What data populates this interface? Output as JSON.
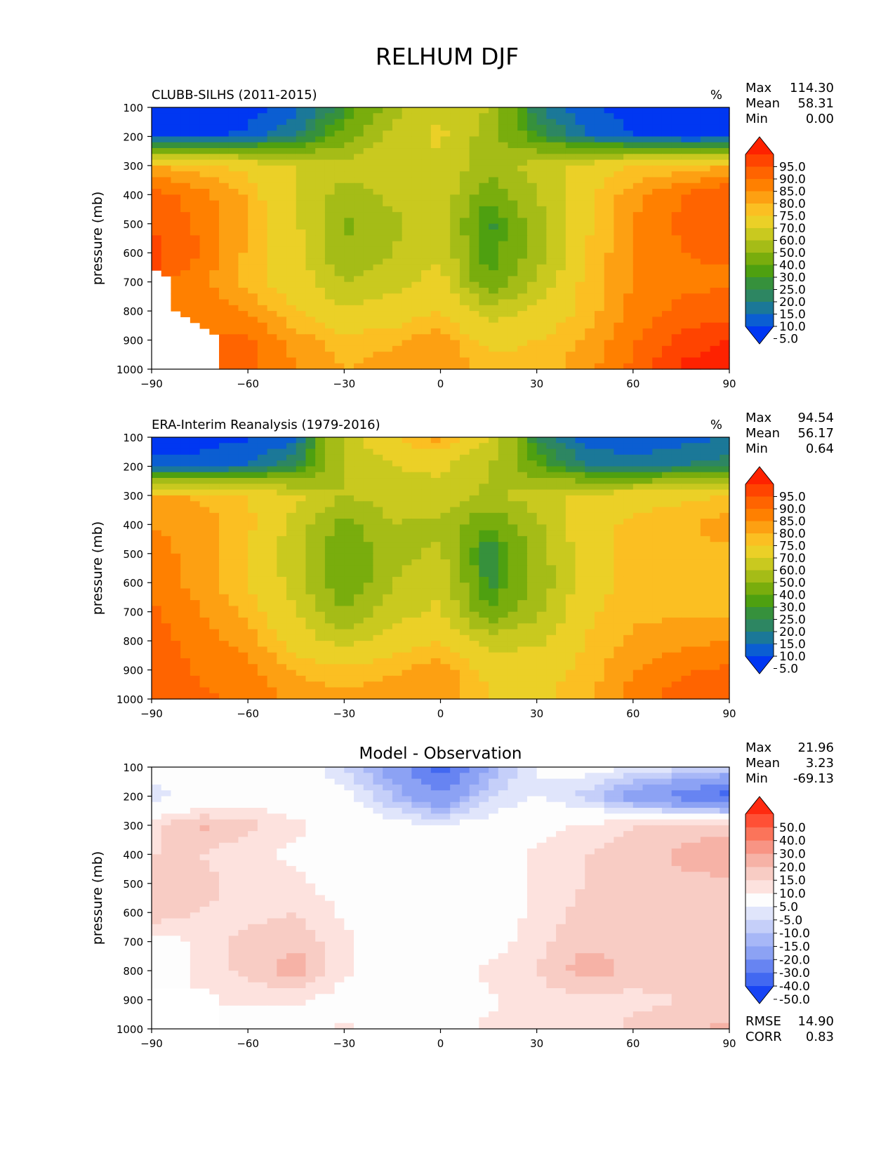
{
  "figure": {
    "title": "RELHUM DJF"
  },
  "panels": [
    {
      "id": "model",
      "title": "CLUBB-SILHS (2011-2015)",
      "units": "%",
      "stats": [
        {
          "label": "Max",
          "value": "114.30"
        },
        {
          "label": "Mean",
          "value": "58.31"
        },
        {
          "label": "Min",
          "value": "0.00"
        }
      ],
      "colorbar": {
        "labels": [
          "95.0",
          "90.0",
          "85.0",
          "80.0",
          "75.0",
          "70.0",
          "60.0",
          "50.0",
          "40.0",
          "30.0",
          "25.0",
          "20.0",
          "15.0",
          "10.0",
          "5.0"
        ],
        "colors": [
          "#fe2200",
          "#ff4400",
          "#ff6400",
          "#ff8000",
          "#fda012",
          "#fbbf22",
          "#ebd027",
          "#c9c91f",
          "#a5bc17",
          "#79ad0d",
          "#4ea010",
          "#36913c",
          "#2d8662",
          "#1b7898",
          "#0b5ed2",
          "#0037f2"
        ]
      },
      "bottom_stats": []
    },
    {
      "id": "obs",
      "title": "ERA-Interim Reanalysis (1979-2016)",
      "units": "%",
      "stats": [
        {
          "label": "Max",
          "value": "94.54"
        },
        {
          "label": "Mean",
          "value": "56.17"
        },
        {
          "label": "Min",
          "value": "0.64"
        }
      ],
      "colorbar": {
        "labels": [
          "95.0",
          "90.0",
          "85.0",
          "80.0",
          "75.0",
          "70.0",
          "60.0",
          "50.0",
          "40.0",
          "30.0",
          "25.0",
          "20.0",
          "15.0",
          "10.0",
          "5.0"
        ],
        "colors": [
          "#fe2200",
          "#ff4400",
          "#ff6400",
          "#ff8000",
          "#fda012",
          "#fbbf22",
          "#ebd027",
          "#c9c91f",
          "#a5bc17",
          "#79ad0d",
          "#4ea010",
          "#36913c",
          "#2d8662",
          "#1b7898",
          "#0b5ed2",
          "#0037f2"
        ]
      },
      "bottom_stats": []
    },
    {
      "id": "diff",
      "title": "Model - Observation",
      "units": "",
      "stats": [
        {
          "label": "Max",
          "value": "21.96"
        },
        {
          "label": "Mean",
          "value": "3.23"
        },
        {
          "label": "Min",
          "value": "-69.13"
        }
      ],
      "colorbar": {
        "labels": [
          "50.0",
          "40.0",
          "30.0",
          "20.0",
          "15.0",
          "10.0",
          "5.0",
          "-5.0",
          "-10.0",
          "-15.0",
          "-20.0",
          "-30.0",
          "-40.0",
          "-50.0"
        ],
        "colors": [
          "#ff2a10",
          "#ff5035",
          "#fb745a",
          "#f89484",
          "#f6b2a6",
          "#f8ccc4",
          "#fde2de",
          "#fdfdfd",
          "#e0e5fb",
          "#c5cff9",
          "#a7b7f7",
          "#8ca2f4",
          "#6784f2",
          "#4268f1",
          "#1844f4"
        ]
      },
      "bottom_stats": [
        {
          "label": "RMSE",
          "value": "14.90"
        },
        {
          "label": "CORR",
          "value": "0.83"
        }
      ]
    }
  ],
  "axes": {
    "ylabel": "pressure (mb)",
    "x_ticks": [
      "−90",
      "−60",
      "−30",
      "0",
      "30",
      "60",
      "90"
    ],
    "y_ticks": [
      "100",
      "200",
      "300",
      "400",
      "500",
      "600",
      "700",
      "800",
      "900",
      "1000"
    ]
  },
  "chart_data": [
    {
      "type": "heatmap",
      "title": "CLUBB-SILHS (2011-2015)",
      "units": "%",
      "ylabel": "pressure (mb)",
      "x": [
        -90,
        -75,
        -60,
        -45,
        -30,
        -15,
        0,
        15,
        30,
        45,
        60,
        75,
        90
      ],
      "y": [
        100,
        200,
        300,
        400,
        500,
        600,
        700,
        800,
        900,
        1000
      ],
      "xlim": [
        -90,
        90
      ],
      "ylim": [
        1000,
        100
      ],
      "levels": [
        5,
        10,
        15,
        20,
        25,
        30,
        40,
        50,
        60,
        70,
        75,
        80,
        85,
        90,
        95
      ],
      "stats": {
        "max": 114.3,
        "mean": 58.31,
        "min": 0.0
      },
      "z": [
        [
          2,
          2,
          3,
          8,
          22,
          45,
          60,
          50,
          15,
          6,
          3,
          2,
          2
        ],
        [
          3,
          4,
          6,
          15,
          35,
          55,
          62,
          45,
          25,
          10,
          5,
          3,
          3
        ],
        [
          75,
          72,
          68,
          60,
          55,
          55,
          58,
          45,
          55,
          65,
          70,
          72,
          75
        ],
        [
          88,
          82,
          74,
          60,
          45,
          52,
          58,
          32,
          50,
          68,
          78,
          85,
          90
        ],
        [
          90,
          84,
          76,
          62,
          38,
          48,
          55,
          22,
          45,
          68,
          80,
          86,
          88
        ],
        [
          92,
          85,
          74,
          65,
          40,
          50,
          58,
          25,
          45,
          70,
          80,
          85,
          86
        ],
        [
          null,
          82,
          72,
          66,
          50,
          56,
          65,
          30,
          52,
          72,
          80,
          84,
          84
        ],
        [
          null,
          84,
          80,
          70,
          62,
          65,
          70,
          55,
          62,
          72,
          82,
          86,
          88
        ],
        [
          null,
          null,
          86,
          78,
          72,
          74,
          78,
          68,
          70,
          76,
          84,
          92,
          95
        ],
        [
          null,
          null,
          86,
          80,
          75,
          78,
          80,
          72,
          72,
          78,
          86,
          96,
          98
        ]
      ]
    },
    {
      "type": "heatmap",
      "title": "ERA-Interim Reanalysis (1979-2016)",
      "units": "%",
      "ylabel": "pressure (mb)",
      "x": [
        -90,
        -75,
        -60,
        -45,
        -30,
        -15,
        0,
        15,
        30,
        45,
        60,
        75,
        90
      ],
      "y": [
        100,
        200,
        300,
        400,
        500,
        600,
        700,
        800,
        900,
        1000
      ],
      "xlim": [
        -90,
        90
      ],
      "ylim": [
        1000,
        100
      ],
      "levels": [
        5,
        10,
        15,
        20,
        25,
        30,
        40,
        50,
        60,
        70,
        75,
        80,
        85,
        90,
        95
      ],
      "stats": {
        "max": 94.54,
        "mean": 56.17,
        "min": 0.64
      },
      "z": [
        [
          3,
          3,
          4,
          8,
          55,
          70,
          78,
          60,
          20,
          8,
          5,
          8,
          10
        ],
        [
          6,
          7,
          10,
          20,
          50,
          60,
          62,
          50,
          30,
          15,
          12,
          15,
          18
        ],
        [
          76,
          74,
          70,
          62,
          50,
          55,
          56,
          48,
          55,
          64,
          66,
          68,
          70
        ],
        [
          80,
          78,
          72,
          56,
          36,
          50,
          48,
          30,
          48,
          66,
          72,
          74,
          78
        ],
        [
          82,
          78,
          70,
          54,
          30,
          46,
          52,
          18,
          44,
          66,
          72,
          72,
          74
        ],
        [
          84,
          78,
          70,
          56,
          30,
          50,
          58,
          22,
          42,
          66,
          72,
          72,
          72
        ],
        [
          86,
          80,
          74,
          60,
          40,
          56,
          62,
          30,
          48,
          68,
          74,
          74,
          74
        ],
        [
          88,
          82,
          78,
          66,
          56,
          66,
          70,
          56,
          58,
          70,
          76,
          78,
          80
        ],
        [
          90,
          84,
          82,
          74,
          72,
          74,
          78,
          68,
          66,
          72,
          80,
          84,
          86
        ],
        [
          90,
          86,
          84,
          78,
          76,
          78,
          80,
          70,
          68,
          74,
          82,
          88,
          90
        ]
      ]
    },
    {
      "type": "heatmap",
      "title": "Model - Observation",
      "units": "",
      "ylabel": "pressure (mb)",
      "x": [
        -90,
        -75,
        -60,
        -45,
        -30,
        -15,
        0,
        15,
        30,
        45,
        60,
        75,
        90
      ],
      "y": [
        100,
        200,
        300,
        400,
        500,
        600,
        700,
        800,
        900,
        1000
      ],
      "xlim": [
        -90,
        90
      ],
      "ylim": [
        1000,
        100
      ],
      "levels": [
        -50,
        -40,
        -30,
        -20,
        -15,
        -10,
        -5,
        5,
        10,
        15,
        20,
        30,
        40,
        50
      ],
      "stats": {
        "max": 21.96,
        "mean": 3.23,
        "min": -69.13,
        "rmse": 14.9,
        "corr": 0.83
      },
      "z": [
        [
          0,
          0,
          0,
          0,
          -10,
          -25,
          -45,
          -20,
          -5,
          -2,
          -5,
          -8,
          -10
        ],
        [
          -8,
          -2,
          0,
          0,
          -3,
          -15,
          -30,
          -10,
          -5,
          -12,
          -25,
          -35,
          -45
        ],
        [
          8,
          16,
          12,
          6,
          2,
          -3,
          -4,
          -2,
          2,
          6,
          10,
          12,
          14
        ],
        [
          10,
          10,
          6,
          4,
          2,
          2,
          2,
          2,
          6,
          10,
          12,
          16,
          18
        ],
        [
          12,
          12,
          8,
          6,
          2,
          2,
          2,
          2,
          6,
          10,
          12,
          14,
          14
        ],
        [
          14,
          10,
          8,
          10,
          4,
          2,
          2,
          2,
          6,
          12,
          12,
          12,
          12
        ],
        [
          2,
          6,
          12,
          14,
          6,
          2,
          2,
          2,
          8,
          14,
          12,
          10,
          10
        ],
        [
          2,
          6,
          12,
          18,
          6,
          2,
          2,
          6,
          10,
          18,
          14,
          12,
          10
        ],
        [
          null,
          null,
          6,
          6,
          2,
          2,
          2,
          4,
          8,
          8,
          8,
          10,
          12
        ],
        [
          null,
          null,
          2,
          2,
          6,
          2,
          2,
          6,
          8,
          6,
          12,
          14,
          16
        ]
      ]
    }
  ]
}
